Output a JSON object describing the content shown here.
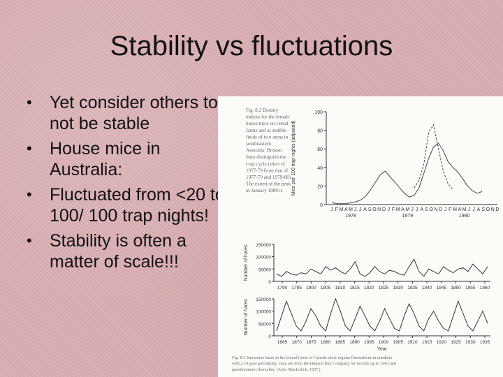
{
  "slide": {
    "title": "Stability vs fluctuations",
    "bullets": [
      "Yet consider others to not be stable",
      "House mice in Australia:",
      "Fluctuated from <20 to 100/ 100 trap nights!",
      "Stability is often a matter of scale!!!"
    ]
  },
  "chart_data": [
    {
      "type": "line",
      "ylabel": "Mice per 100 trap nights (adjusted)",
      "ylim": [
        0,
        100
      ],
      "y_ticks": [
        0,
        20,
        40,
        60,
        80,
        100
      ],
      "month_labels": [
        "J",
        "F",
        "M",
        "A",
        "M",
        "J",
        "J",
        "A",
        "S",
        "O",
        "N",
        "D",
        "J",
        "F",
        "M",
        "A",
        "M",
        "J",
        "J",
        "A",
        "S",
        "O",
        "N",
        "D",
        "J",
        "F",
        "M",
        "A",
        "M",
        "J",
        "J",
        "A",
        "S",
        "O",
        "N",
        "D"
      ],
      "year_labels": [
        "1978",
        "1979",
        "1980"
      ],
      "series": [
        {
          "values": [
            2,
            1,
            1,
            1,
            2,
            3,
            5,
            9,
            16,
            24,
            32,
            36,
            30,
            24,
            18,
            12,
            8,
            10,
            18,
            34,
            50,
            62,
            66,
            58,
            46,
            40,
            35,
            28,
            20,
            15,
            12,
            14
          ]
        },
        {
          "values": [
            null,
            null,
            null,
            null,
            null,
            null,
            null,
            null,
            null,
            null,
            null,
            null,
            null,
            null,
            null,
            null,
            null,
            18,
            26,
            44,
            78,
            86,
            60,
            36,
            22,
            16,
            null,
            null,
            null,
            null,
            null,
            null
          ]
        }
      ],
      "caption": "Fig. 8.2 Density indices for the female house mice on cereal farms and at stubble fields of two areas in southeastern Australia. Broken lines distinguish the crop cycle (short of 1977-79 from that of 1977-79 and 1979-80). The extent of the peak in January 1980 is unknown due to a poisoning campaign. (After Redhead, 1982.)"
    },
    {
      "type": "line",
      "ylabel": "Number of hares",
      "ylim": [
        0,
        150000
      ],
      "y_ticks": [
        0,
        50000,
        100000,
        150000
      ],
      "x_ticks": [
        1790,
        1795,
        1800,
        1805,
        1810,
        1815,
        1820,
        1825,
        1830,
        1835,
        1840,
        1845,
        1850,
        1855,
        1860
      ],
      "series": [
        {
          "values": [
            30000,
            20000,
            40000,
            30000,
            25000,
            35000,
            30000,
            50000,
            40000,
            30000,
            60000,
            45000,
            55000,
            40000,
            30000,
            50000,
            80000,
            30000,
            20000,
            35000,
            60000,
            40000,
            30000,
            45000,
            40000,
            30000,
            25000,
            60000,
            90000,
            40000,
            20000,
            50000,
            40000,
            30000,
            60000,
            45000,
            35000,
            50000,
            55000,
            40000,
            70000,
            50000,
            30000,
            60000
          ]
        }
      ]
    },
    {
      "type": "line",
      "ylabel": "Number of hares",
      "xlabel": "Year",
      "ylim": [
        0,
        150000
      ],
      "y_ticks": [
        0,
        50000,
        100000,
        150000
      ],
      "x_ticks": [
        1865,
        1870,
        1875,
        1880,
        1885,
        1890,
        1895,
        1900,
        1905,
        1910,
        1915,
        1920,
        1925,
        1930,
        1935
      ],
      "series": [
        {
          "values": [
            20000,
            80000,
            140000,
            90000,
            40000,
            20000,
            60000,
            110000,
            80000,
            40000,
            20000,
            90000,
            150000,
            100000,
            40000,
            20000,
            70000,
            120000,
            80000,
            40000,
            20000,
            60000,
            110000,
            70000,
            30000,
            20000,
            80000,
            130000,
            90000,
            40000,
            20000,
            70000,
            100000,
            60000,
            30000,
            20000,
            80000,
            140000,
            90000,
            40000,
            20000,
            60000,
            100000,
            50000
          ]
        }
      ],
      "caption": "Fig. 8.3 Snowshoe hares in the boreal forest of Canada show regular fluctuations in numbers with a 10-year periodicity. Data are from the Hudson Bay Company fur records up to 1903 and questionnaires thereafter. (After MacLulich, 1937.)"
    }
  ]
}
